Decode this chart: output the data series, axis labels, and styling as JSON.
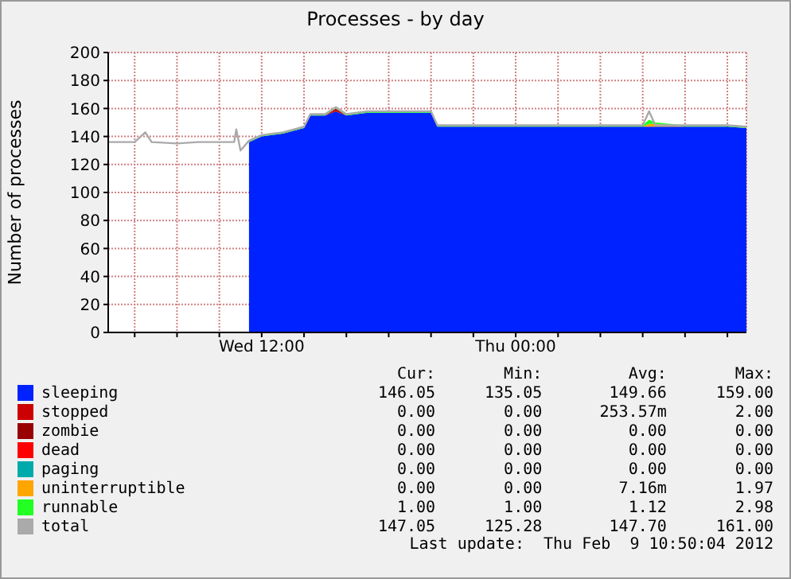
{
  "chart_data": {
    "type": "area",
    "title": "Processes - by day",
    "ylabel": "Number of processes",
    "x": [
      "2012-02-08T04:45",
      "2012-02-08T06:00",
      "2012-02-08T06:30",
      "2012-02-08T06:48",
      "2012-02-08T08:00",
      "2012-02-08T09:00",
      "2012-02-08T10:00",
      "2012-02-08T10:42",
      "2012-02-08T10:48",
      "2012-02-08T11:00",
      "2012-02-08T11:24",
      "2012-02-08T12:00",
      "2012-02-08T12:30",
      "2012-02-08T13:00",
      "2012-02-08T13:30",
      "2012-02-08T14:00",
      "2012-02-08T14:18",
      "2012-02-08T15:00",
      "2012-02-08T15:30",
      "2012-02-08T16:00",
      "2012-02-08T17:00",
      "2012-02-08T18:00",
      "2012-02-08T19:00",
      "2012-02-08T20:00",
      "2012-02-08T20:18",
      "2012-02-08T22:00",
      "2012-02-09T00:00",
      "2012-02-09T02:00",
      "2012-02-09T04:00",
      "2012-02-09T06:00",
      "2012-02-09T06:18",
      "2012-02-09T06:36",
      "2012-02-09T08:00",
      "2012-02-09T10:00",
      "2012-02-09T10:54"
    ],
    "series": [
      {
        "name": "sleeping",
        "color": "#0022ff",
        "values": [
          null,
          null,
          null,
          null,
          null,
          null,
          null,
          null,
          null,
          null,
          136,
          140,
          141,
          142,
          144,
          146,
          155,
          155,
          158,
          155,
          157,
          157,
          157,
          157,
          147,
          147,
          147,
          147,
          147,
          147,
          147,
          147,
          147,
          147,
          146
        ]
      },
      {
        "name": "stopped",
        "color": "#cc0000",
        "values": [
          null,
          null,
          null,
          null,
          null,
          null,
          null,
          null,
          null,
          null,
          null,
          null,
          null,
          null,
          null,
          null,
          null,
          0,
          2,
          0,
          null,
          null,
          null,
          null,
          null,
          null,
          null,
          null,
          null,
          null,
          null,
          null,
          null,
          null,
          null
        ]
      },
      {
        "name": "zombie",
        "color": "#990000",
        "values": [
          null,
          null,
          null,
          null,
          null,
          null,
          null,
          null,
          null,
          null,
          null,
          null,
          null,
          null,
          null,
          null,
          null,
          null,
          null,
          null,
          null,
          null,
          null,
          null,
          null,
          null,
          null,
          null,
          null,
          null,
          null,
          null,
          null,
          null,
          null
        ]
      },
      {
        "name": "dead",
        "color": "#ff0000",
        "values": [
          null,
          null,
          null,
          null,
          null,
          null,
          null,
          null,
          null,
          null,
          null,
          null,
          null,
          null,
          null,
          null,
          null,
          null,
          null,
          null,
          null,
          null,
          null,
          null,
          null,
          null,
          null,
          null,
          null,
          null,
          null,
          null,
          null,
          null,
          null
        ]
      },
      {
        "name": "paging",
        "color": "#00aaaa",
        "values": [
          null,
          null,
          null,
          null,
          null,
          null,
          null,
          null,
          null,
          null,
          null,
          null,
          null,
          null,
          null,
          null,
          null,
          null,
          null,
          null,
          null,
          null,
          null,
          null,
          null,
          null,
          null,
          null,
          null,
          null,
          null,
          null,
          null,
          null,
          null
        ]
      },
      {
        "name": "uninterruptible",
        "color": "#ffa500",
        "values": [
          null,
          null,
          null,
          null,
          null,
          null,
          null,
          null,
          null,
          null,
          null,
          null,
          null,
          null,
          null,
          null,
          null,
          null,
          null,
          null,
          null,
          null,
          null,
          null,
          null,
          null,
          null,
          null,
          null,
          0,
          2,
          2,
          0,
          null,
          null
        ]
      },
      {
        "name": "runnable",
        "color": "#22ff22",
        "values": [
          null,
          null,
          null,
          null,
          null,
          null,
          null,
          null,
          null,
          null,
          1,
          1,
          1,
          1,
          1,
          1,
          1,
          1,
          1,
          1,
          1,
          1,
          1,
          1,
          1,
          1,
          1,
          1,
          1,
          1,
          3,
          1,
          1,
          1,
          1
        ]
      },
      {
        "name": "total",
        "type": "line",
        "color": "#aaaaaa",
        "values": [
          136,
          136,
          143,
          136,
          135,
          136,
          136,
          136,
          145,
          130,
          137,
          141,
          142,
          143,
          145,
          147,
          156,
          156,
          161,
          156,
          158,
          158,
          158,
          158,
          148,
          148,
          148,
          148,
          148,
          148,
          158,
          148,
          148,
          148,
          147
        ]
      }
    ],
    "stacked": true,
    "xlim": [
      "2012-02-08T04:45",
      "2012-02-09T10:54"
    ],
    "xticks": [
      {
        "value": "2012-02-08T06:00",
        "label": null
      },
      {
        "value": "2012-02-08T08:00",
        "label": null
      },
      {
        "value": "2012-02-08T10:00",
        "label": null
      },
      {
        "value": "2012-02-08T12:00",
        "label": "Wed 12:00"
      },
      {
        "value": "2012-02-08T14:00",
        "label": null
      },
      {
        "value": "2012-02-08T16:00",
        "label": null
      },
      {
        "value": "2012-02-08T18:00",
        "label": null
      },
      {
        "value": "2012-02-08T20:00",
        "label": null
      },
      {
        "value": "2012-02-08T22:00",
        "label": null
      },
      {
        "value": "2012-02-09T00:00",
        "label": "Thu 00:00"
      },
      {
        "value": "2012-02-09T02:00",
        "label": null
      },
      {
        "value": "2012-02-09T04:00",
        "label": null
      },
      {
        "value": "2012-02-09T06:00",
        "label": null
      },
      {
        "value": "2012-02-09T08:00",
        "label": null
      },
      {
        "value": "2012-02-09T10:00",
        "label": null
      }
    ],
    "ylim": [
      0,
      200
    ],
    "yticks": [
      0,
      20,
      40,
      60,
      80,
      100,
      120,
      140,
      160,
      180,
      200
    ],
    "grid": true,
    "legend": "bottom",
    "annotations": [
      "Cur:",
      "Min:",
      "Avg:",
      "Max:",
      "146.05",
      "135.05",
      "149.66",
      "159.00",
      "0.00",
      "0.00",
      "253.57m",
      "2.00",
      "0.00",
      "0.00",
      "0.00",
      "0.00",
      "0.00",
      "0.00",
      "0.00",
      "0.00",
      "0.00",
      "0.00",
      "0.00",
      "0.00",
      "0.00",
      "0.00",
      "7.16m",
      "1.97",
      "1.00",
      "1.00",
      "1.12",
      "2.98",
      "147.05",
      "125.28",
      "147.70",
      "161.00",
      "Last update:  Thu Feb  9 10:50:04 2012"
    ]
  }
}
